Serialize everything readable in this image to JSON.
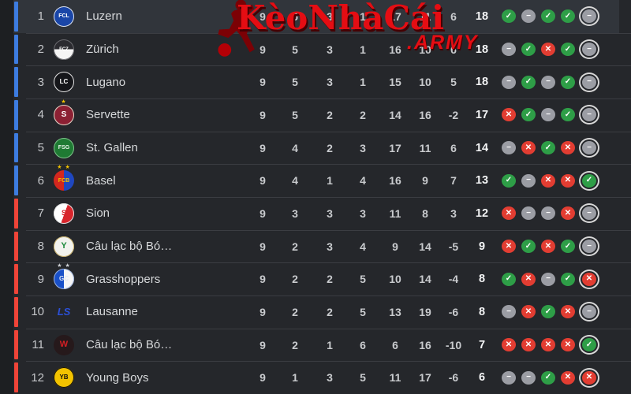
{
  "watermark": {
    "brand": "KèoNhàCái",
    "suffix": ".ARMY",
    "brand_color": "#e50d13",
    "player_icon": "soccer-player-silhouette"
  },
  "colors": {
    "row_bg": "#25272b",
    "row_highlight": "#31353b",
    "divider": "#3b3d42",
    "text": "#d7d9db"
  },
  "zone_colors": {
    "promotion": "#3d7ce0",
    "relegation": "#ef4438"
  },
  "form_colors": {
    "win": "#2e9e47",
    "loss": "#e23d32",
    "draw": "#9b9da4"
  },
  "form_glyphs": {
    "W": "✓",
    "L": "✕",
    "D": "−"
  },
  "table": {
    "columns": [
      "pos",
      "team",
      "p",
      "w",
      "d",
      "l",
      "gf",
      "ga",
      "gd",
      "pts",
      "form"
    ],
    "rows": [
      {
        "pos": 1,
        "name": "Luzern",
        "zone": "promotion",
        "highlighted": true,
        "logo": {
          "text": "FCL",
          "bg": "#1a46a8",
          "fg": "#ffffff",
          "size": 7,
          "border": "#dfe3ea"
        },
        "stats": {
          "p": 9,
          "w": 5,
          "d": 3,
          "l": 1,
          "gf": 17,
          "ga": 11,
          "gd": 6,
          "pts": 18
        },
        "form": [
          "W",
          "D",
          "W",
          "W",
          "D"
        ]
      },
      {
        "pos": 2,
        "name": "Zürich",
        "zone": "promotion",
        "highlighted": false,
        "logo": {
          "text": "FCZ",
          "bg": "linear-gradient(180deg,#2b2b30 48%,#f5f5f5 48%)",
          "fg": "#ffffff",
          "size": 6,
          "border": "#6b6b70"
        },
        "stats": {
          "p": 9,
          "w": 5,
          "d": 3,
          "l": 1,
          "gf": 16,
          "ga": 10,
          "gd": 6,
          "pts": 18
        },
        "form": [
          "D",
          "W",
          "L",
          "W",
          "D"
        ]
      },
      {
        "pos": 3,
        "name": "Lugano",
        "zone": "promotion",
        "highlighted": false,
        "logo": {
          "text": "LC",
          "bg": "#15161a",
          "fg": "#ffffff",
          "size": 8,
          "border": "#e8e8e8"
        },
        "stats": {
          "p": 9,
          "w": 5,
          "d": 3,
          "l": 1,
          "gf": 15,
          "ga": 10,
          "gd": 5,
          "pts": 18
        },
        "form": [
          "D",
          "W",
          "D",
          "W",
          "D"
        ]
      },
      {
        "pos": 4,
        "name": "Servette",
        "zone": "promotion",
        "highlighted": false,
        "logo": {
          "text": "S",
          "bg": "#8c2033",
          "fg": "#ffffff",
          "size": 10,
          "border": "#e0d8c8",
          "stars": {
            "text": "★",
            "color": "#f2c200"
          }
        },
        "stats": {
          "p": 9,
          "w": 5,
          "d": 2,
          "l": 2,
          "gf": 14,
          "ga": 16,
          "gd": -2,
          "pts": 17
        },
        "form": [
          "L",
          "W",
          "D",
          "W",
          "D"
        ]
      },
      {
        "pos": 5,
        "name": "St. Gallen",
        "zone": "promotion",
        "highlighted": false,
        "logo": {
          "text": "FSG",
          "bg": "#1f7a33",
          "fg": "#eaf4ea",
          "size": 7,
          "border": "#7fc08a"
        },
        "stats": {
          "p": 9,
          "w": 4,
          "d": 2,
          "l": 3,
          "gf": 17,
          "ga": 11,
          "gd": 6,
          "pts": 14
        },
        "form": [
          "D",
          "L",
          "W",
          "L",
          "D"
        ]
      },
      {
        "pos": 6,
        "name": "Basel",
        "zone": "promotion",
        "highlighted": false,
        "logo": {
          "text": "FCB",
          "bg": "linear-gradient(90deg,#d3271e 50%,#1f47c0 50%)",
          "fg": "#f2c200",
          "size": 7,
          "stars": {
            "text": "★ ★",
            "color": "#f2c200"
          }
        },
        "stats": {
          "p": 9,
          "w": 4,
          "d": 1,
          "l": 4,
          "gf": 16,
          "ga": 9,
          "gd": 7,
          "pts": 13
        },
        "form": [
          "W",
          "D",
          "L",
          "L",
          "W"
        ]
      },
      {
        "pos": 7,
        "name": "Sion",
        "zone": "relegation",
        "highlighted": false,
        "logo": {
          "text": "S",
          "bg": "linear-gradient(110deg,#ffffff 52%,#d8242b 52%)",
          "fg": "#d8242b",
          "size": 9,
          "border": "#e3e3e3"
        },
        "stats": {
          "p": 9,
          "w": 3,
          "d": 3,
          "l": 3,
          "gf": 11,
          "ga": 8,
          "gd": 3,
          "pts": 12
        },
        "form": [
          "L",
          "D",
          "D",
          "L",
          "D"
        ]
      },
      {
        "pos": 8,
        "name": "Câu lạc bộ Bó…",
        "zone": "relegation",
        "highlighted": false,
        "logo": {
          "text": "Y",
          "bg": "#f2f2ee",
          "fg": "#1d8a3c",
          "size": 11,
          "border": "#c9b06a"
        },
        "stats": {
          "p": 9,
          "w": 2,
          "d": 3,
          "l": 4,
          "gf": 9,
          "ga": 14,
          "gd": -5,
          "pts": 9
        },
        "form": [
          "L",
          "W",
          "L",
          "W",
          "D"
        ]
      },
      {
        "pos": 9,
        "name": "Grasshoppers",
        "zone": "relegation",
        "highlighted": false,
        "logo": {
          "text": "GC",
          "bg": "linear-gradient(90deg,#1950c8 50%,#f5f5f5 50%)",
          "fg": "#dfe5f2",
          "size": 8,
          "border": "#9fb4dd",
          "stars": {
            "text": "★ ★",
            "color": "#cfd2d6"
          }
        },
        "stats": {
          "p": 9,
          "w": 2,
          "d": 2,
          "l": 5,
          "gf": 10,
          "ga": 14,
          "gd": -4,
          "pts": 8
        },
        "form": [
          "W",
          "L",
          "D",
          "W",
          "L"
        ]
      },
      {
        "pos": 10,
        "name": "Lausanne",
        "zone": "relegation",
        "highlighted": false,
        "logo": {
          "text": "LS",
          "bg": "transparent",
          "fg": "#2b50d8",
          "size": 13,
          "italic": true
        },
        "stats": {
          "p": 9,
          "w": 2,
          "d": 2,
          "l": 5,
          "gf": 13,
          "ga": 19,
          "gd": -6,
          "pts": 8
        },
        "form": [
          "D",
          "L",
          "W",
          "L",
          "D"
        ]
      },
      {
        "pos": 11,
        "name": "Câu lạc bộ Bó…",
        "zone": "relegation",
        "highlighted": false,
        "logo": {
          "text": "W",
          "bg": "#26191b",
          "fg": "#d41f24",
          "size": 11
        },
        "stats": {
          "p": 9,
          "w": 2,
          "d": 1,
          "l": 6,
          "gf": 6,
          "ga": 16,
          "gd": -10,
          "pts": 7
        },
        "form": [
          "L",
          "L",
          "L",
          "L",
          "W"
        ]
      },
      {
        "pos": 12,
        "name": "Young Boys",
        "zone": "relegation",
        "highlighted": false,
        "logo": {
          "text": "YB",
          "bg": "#f3c300",
          "fg": "#15120a",
          "size": 8,
          "border": "#15120a"
        },
        "stats": {
          "p": 9,
          "w": 1,
          "d": 3,
          "l": 5,
          "gf": 11,
          "ga": 17,
          "gd": -6,
          "pts": 6
        },
        "form": [
          "D",
          "D",
          "W",
          "L",
          "L"
        ]
      }
    ]
  }
}
